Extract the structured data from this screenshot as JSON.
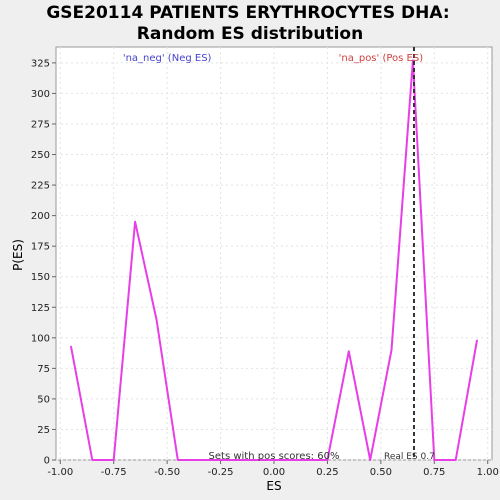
{
  "chart_data": {
    "type": "line",
    "title_lines": [
      "GSE20114 PATIENTS ERYTHROCYTES DHA:",
      "Random ES distribution"
    ],
    "xlabel": "ES",
    "ylabel": "P(ES)",
    "xlim": [
      -1.02,
      1.02
    ],
    "ylim": [
      0,
      338
    ],
    "xticks": [
      -1.0,
      -0.75,
      -0.5,
      -0.25,
      0.0,
      0.25,
      0.5,
      0.75,
      1.0
    ],
    "xtick_labels": [
      "-1.00",
      "-0.75",
      "-0.50",
      "-0.25",
      "0.00",
      "0.25",
      "0.50",
      "0.75",
      "1.00"
    ],
    "yticks": [
      0,
      25,
      50,
      75,
      100,
      125,
      150,
      175,
      200,
      225,
      250,
      275,
      300,
      325
    ],
    "ytick_labels": [
      "0",
      "25",
      "50",
      "75",
      "100",
      "125",
      "150",
      "175",
      "200",
      "225",
      "250",
      "275",
      "300",
      "325"
    ],
    "grid": true,
    "series": [
      {
        "color": "#e83ee8",
        "x": [
          -0.95,
          -0.85,
          -0.75,
          -0.65,
          -0.55,
          -0.45,
          0.25,
          0.35,
          0.45,
          0.55,
          0.65,
          0.75,
          0.85,
          0.95
        ],
        "y": [
          93,
          0,
          0,
          195,
          115,
          0,
          0,
          89,
          0,
          90,
          327,
          0,
          0,
          98
        ]
      }
    ],
    "real_es": 0.655,
    "annotations": {
      "neg": "'na_neg' (Neg ES)",
      "pos": "'na_pos' (Pos ES)",
      "sets_pos": "Sets with pos scores: 60%",
      "real_es_label": "Real ES 0.7"
    },
    "colors": {
      "neg_text": "#4444cc",
      "pos_text": "#d04040",
      "line": "#e83ee8",
      "real_es_line": "#333333"
    }
  }
}
